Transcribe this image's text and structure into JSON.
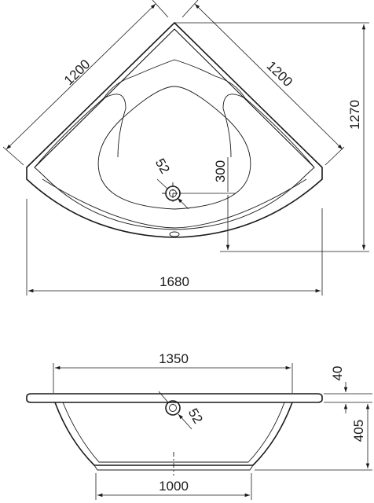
{
  "top_view": {
    "side_left": "1200",
    "side_right": "1200",
    "depth": "1270",
    "width": "1680",
    "drain_offset": "300",
    "drain_diameter": "52"
  },
  "side_view": {
    "top_width": "1350",
    "bottom_width": "1000",
    "rim_thickness": "40",
    "height": "405",
    "drain_diameter": "52"
  },
  "colors": {
    "line": "#1a1a1a",
    "background": "#ffffff"
  }
}
